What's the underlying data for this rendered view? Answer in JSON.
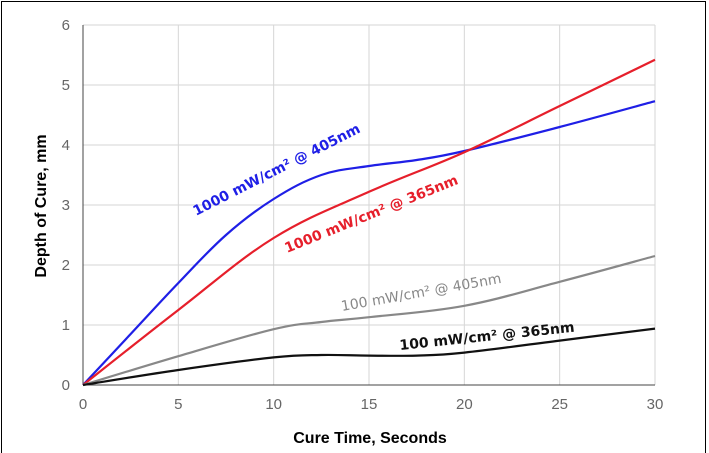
{
  "chart_data": {
    "type": "line",
    "title": "",
    "xlabel": "Cure Time, Seconds",
    "ylabel": "Depth of Cure, mm",
    "xlim": [
      0,
      30
    ],
    "ylim": [
      0,
      6
    ],
    "x_ticks": [
      "0",
      "5",
      "10",
      "15",
      "20",
      "25",
      "30"
    ],
    "y_ticks": [
      "0",
      "1",
      "2",
      "3",
      "4",
      "5",
      "6"
    ],
    "grid": true,
    "series": [
      {
        "name": "1000 mW/cm² @ 405nm",
        "color": "#1f1fe6",
        "x": [
          0,
          2.5,
          5,
          7.5,
          10,
          12.5,
          15,
          17.5,
          20,
          25,
          30
        ],
        "y": [
          0,
          0.85,
          1.7,
          2.5,
          3.1,
          3.5,
          3.65,
          3.75,
          3.9,
          4.3,
          4.73
        ]
      },
      {
        "name": "1000 mW/cm² @ 365nm",
        "color": "#e61f2b",
        "x": [
          0,
          5,
          10,
          15,
          20,
          25,
          30
        ],
        "y": [
          0,
          1.25,
          2.45,
          3.22,
          3.88,
          4.65,
          5.42
        ]
      },
      {
        "name": "100 mW/cm² @ 405nm",
        "color": "#888888",
        "x": [
          0,
          5,
          10,
          12.5,
          15,
          20,
          25,
          30
        ],
        "y": [
          0,
          0.48,
          0.93,
          1.05,
          1.13,
          1.32,
          1.72,
          2.15
        ]
      },
      {
        "name": "100 mW/cm² @ 365nm",
        "color": "#111111",
        "x": [
          0,
          5,
          10,
          12.5,
          15,
          17.5,
          20,
          25,
          30
        ],
        "y": [
          0,
          0.25,
          0.46,
          0.5,
          0.49,
          0.49,
          0.54,
          0.74,
          0.94
        ]
      }
    ]
  }
}
